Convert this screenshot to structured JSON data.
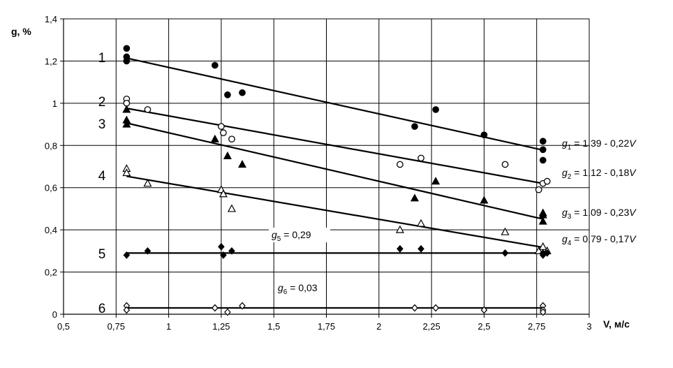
{
  "chart_data": {
    "type": "scatter",
    "xlabel": "V, м/с",
    "ylabel": "g, %",
    "xlim": [
      0.5,
      3
    ],
    "ylim": [
      0,
      1.4
    ],
    "x_ticks": [
      "0,5",
      "0,75",
      "1",
      "1,25",
      "1,5",
      "1,75",
      "2",
      "2,25",
      "2,5",
      "2,75",
      "3"
    ],
    "y_ticks": [
      "0",
      "0,2",
      "0,4",
      "0,6",
      "0,8",
      "1",
      "1,2",
      "1,4"
    ],
    "grid": true,
    "colors": {
      "line": "#000000",
      "grid": "#000000",
      "background": "#ffffff"
    },
    "series": [
      {
        "id": "1",
        "marker": "filled-circle",
        "points": [
          [
            0.8,
            1.26
          ],
          [
            0.8,
            1.22
          ],
          [
            0.8,
            1.2
          ],
          [
            1.22,
            1.18
          ],
          [
            1.28,
            1.04
          ],
          [
            1.35,
            1.05
          ],
          [
            2.17,
            0.89
          ],
          [
            2.27,
            0.97
          ],
          [
            2.5,
            0.85
          ],
          [
            2.78,
            0.82
          ],
          [
            2.78,
            0.78
          ],
          [
            2.78,
            0.73
          ]
        ],
        "fit_line": {
          "x": [
            0.8,
            2.78
          ],
          "y": [
            1.214,
            0.778
          ]
        }
      },
      {
        "id": "2",
        "marker": "open-circle",
        "points": [
          [
            0.8,
            1.02
          ],
          [
            0.8,
            1.0
          ],
          [
            0.9,
            0.97
          ],
          [
            1.25,
            0.89
          ],
          [
            1.26,
            0.86
          ],
          [
            1.3,
            0.83
          ],
          [
            2.1,
            0.71
          ],
          [
            2.2,
            0.74
          ],
          [
            2.6,
            0.71
          ],
          [
            2.76,
            0.59
          ],
          [
            2.78,
            0.62
          ],
          [
            2.8,
            0.63
          ]
        ],
        "fit_line": {
          "x": [
            0.8,
            2.78
          ],
          "y": [
            0.976,
            0.62
          ]
        }
      },
      {
        "id": "3",
        "marker": "filled-triangle",
        "points": [
          [
            0.8,
            0.97
          ],
          [
            0.8,
            0.92
          ],
          [
            0.8,
            0.9
          ],
          [
            1.22,
            0.83
          ],
          [
            1.28,
            0.75
          ],
          [
            1.35,
            0.71
          ],
          [
            2.17,
            0.55
          ],
          [
            2.27,
            0.63
          ],
          [
            2.5,
            0.54
          ],
          [
            2.78,
            0.48
          ],
          [
            2.78,
            0.47
          ],
          [
            2.78,
            0.44
          ]
        ],
        "fit_line": {
          "x": [
            0.8,
            2.78
          ],
          "y": [
            0.906,
            0.451
          ]
        }
      },
      {
        "id": "4",
        "marker": "open-triangle",
        "points": [
          [
            0.8,
            0.69
          ],
          [
            0.8,
            0.67
          ],
          [
            0.9,
            0.62
          ],
          [
            1.25,
            0.59
          ],
          [
            1.26,
            0.57
          ],
          [
            1.3,
            0.5
          ],
          [
            2.1,
            0.4
          ],
          [
            2.2,
            0.43
          ],
          [
            2.6,
            0.39
          ],
          [
            2.76,
            0.3
          ],
          [
            2.78,
            0.32
          ],
          [
            2.8,
            0.3
          ]
        ],
        "fit_line": {
          "x": [
            0.8,
            2.78
          ],
          "y": [
            0.654,
            0.317
          ]
        }
      },
      {
        "id": "5",
        "marker": "filled-diamond",
        "points": [
          [
            0.8,
            0.28
          ],
          [
            0.9,
            0.3
          ],
          [
            1.25,
            0.32
          ],
          [
            1.26,
            0.28
          ],
          [
            1.3,
            0.3
          ],
          [
            2.1,
            0.31
          ],
          [
            2.2,
            0.31
          ],
          [
            2.6,
            0.29
          ],
          [
            2.78,
            0.29
          ],
          [
            2.78,
            0.28
          ],
          [
            2.8,
            0.29
          ]
        ],
        "fit_line": {
          "x": [
            0.8,
            2.78
          ],
          "y": [
            0.29,
            0.29
          ]
        }
      },
      {
        "id": "6",
        "marker": "open-diamond",
        "points": [
          [
            0.8,
            0.04
          ],
          [
            0.8,
            0.02
          ],
          [
            1.22,
            0.03
          ],
          [
            1.28,
            0.01
          ],
          [
            1.35,
            0.04
          ],
          [
            2.17,
            0.03
          ],
          [
            2.27,
            0.03
          ],
          [
            2.5,
            0.02
          ],
          [
            2.78,
            0.04
          ],
          [
            2.78,
            0.02
          ],
          [
            2.78,
            0.01
          ]
        ],
        "fit_line": {
          "x": [
            0.8,
            2.78
          ],
          "y": [
            0.03,
            0.03
          ]
        }
      }
    ],
    "curve_labels": [
      "1",
      "2",
      "3",
      "4",
      "5",
      "6"
    ],
    "equations": [
      {
        "base": "g",
        "sub": "1",
        "text": " = 1,39 - 0,22",
        "var": "V"
      },
      {
        "base": "g",
        "sub": "2",
        "text": " = 1,12 - 0,18",
        "var": "V"
      },
      {
        "base": "g",
        "sub": "3",
        "text": " = 1,09 - 0,23",
        "var": "V"
      },
      {
        "base": "g",
        "sub": "4",
        "text": " = 0,79 - 0,17",
        "var": "V"
      },
      {
        "base": "g",
        "sub": "5",
        "text": " =  0,29",
        "var": ""
      },
      {
        "base": "g",
        "sub": "6",
        "text": " = 0,03",
        "var": ""
      }
    ]
  }
}
